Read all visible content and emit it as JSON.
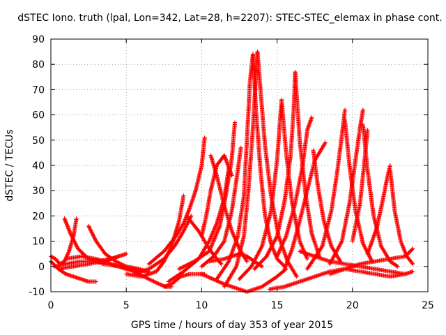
{
  "chart_data": {
    "type": "scatter",
    "title": "dSTEC Iono. truth (lpal, Lon=342, Lat=28, h=2207): STEC-STEC_elemax in phase cont.",
    "xlabel": "GPS time / hours of day 353 of year 2015",
    "ylabel": "dSTEC  / TECUs",
    "xlim": [
      0,
      25
    ],
    "ylim": [
      -10,
      90
    ],
    "xticks": [
      0,
      5,
      10,
      15,
      20,
      25
    ],
    "yticks": [
      -10,
      0,
      10,
      20,
      30,
      40,
      50,
      60,
      70,
      80,
      90
    ],
    "grid": true,
    "marker": "+",
    "colors": {
      "series": "#ff0000"
    },
    "series": [
      {
        "x": [
          0.0,
          0.5,
          1.0,
          1.5,
          2.0,
          2.5,
          3.0
        ],
        "y": [
          2,
          -1,
          -3,
          -4,
          -5,
          -6,
          -6
        ]
      },
      {
        "x": [
          0.0,
          0.3,
          0.6,
          0.9,
          1.2,
          1.5,
          1.7
        ],
        "y": [
          4,
          3,
          1,
          2,
          6,
          12,
          19
        ]
      },
      {
        "x": [
          0.9,
          1.3,
          1.8,
          2.5,
          3.5,
          4.5,
          5.5,
          6.5
        ],
        "y": [
          19,
          13,
          7,
          3,
          1,
          0,
          -1,
          -2
        ]
      },
      {
        "x": [
          2.5,
          3.0,
          3.6,
          4.3,
          5.0,
          5.8,
          6.5
        ],
        "y": [
          16,
          10,
          5,
          2,
          0,
          -1,
          -2
        ]
      },
      {
        "x": [
          0.5,
          1.5,
          2.5,
          3.5,
          4.5,
          5.0
        ],
        "y": [
          -1,
          0,
          1,
          2,
          4,
          5
        ]
      },
      {
        "x": [
          1.0,
          2.0,
          3.0,
          4.0,
          4.5,
          5.0,
          5.8
        ],
        "y": [
          3,
          4,
          3,
          1,
          0,
          -1,
          -2
        ]
      },
      {
        "x": [
          0.2,
          1.0,
          2.0,
          3.0,
          4.0,
          4.5
        ],
        "y": [
          0,
          1,
          2,
          2,
          3,
          4
        ]
      },
      {
        "x": [
          5.0,
          6.0,
          7.0,
          7.5,
          8.0,
          8.5,
          8.8
        ],
        "y": [
          -3,
          -4,
          -2,
          2,
          8,
          18,
          28
        ]
      },
      {
        "x": [
          4.8,
          5.5,
          6.5,
          7.2,
          7.6,
          8.0
        ],
        "y": [
          0,
          -2,
          -5,
          -7,
          -8,
          -8
        ]
      },
      {
        "x": [
          5.5,
          6.5,
          7.5,
          8.2,
          8.8,
          9.3
        ],
        "y": [
          -3,
          -1,
          3,
          8,
          14,
          20
        ]
      },
      {
        "x": [
          6.5,
          7.5,
          8.3,
          8.8,
          9.2,
          9.6,
          10.0,
          10.2
        ],
        "y": [
          1,
          6,
          12,
          17,
          23,
          30,
          40,
          51
        ]
      },
      {
        "x": [
          7.5,
          8.0,
          8.6,
          9.2,
          9.7,
          10.2
        ],
        "y": [
          -8,
          -7,
          -4,
          -3,
          -3,
          -3
        ]
      },
      {
        "x": [
          7.8,
          8.8,
          9.8,
          10.5,
          11.0,
          11.5,
          11.8
        ],
        "y": [
          -6,
          -2,
          3,
          10,
          17,
          27,
          39
        ]
      },
      {
        "x": [
          10.0,
          10.3,
          10.6,
          11.0,
          11.5,
          12.0
        ],
        "y": [
          12,
          20,
          30,
          40,
          44,
          36
        ]
      },
      {
        "x": [
          10.6,
          11.0,
          11.5,
          12.0,
          12.5,
          13.0
        ],
        "y": [
          44,
          36,
          24,
          14,
          7,
          2
        ]
      },
      {
        "x": [
          8.5,
          9.5,
          10.5,
          11.2,
          11.6,
          12.0,
          12.2
        ],
        "y": [
          -1,
          2,
          6,
          16,
          28,
          43,
          57
        ]
      },
      {
        "x": [
          10.0,
          10.8,
          11.5,
          12.0,
          12.3,
          12.6
        ],
        "y": [
          0,
          4,
          10,
          22,
          34,
          47
        ]
      },
      {
        "x": [
          9.0,
          9.8,
          10.5,
          11.0,
          11.3
        ],
        "y": [
          20,
          14,
          7,
          3,
          1
        ]
      },
      {
        "x": [
          10.5,
          11.5,
          12.5,
          13.0,
          13.5,
          14.0
        ],
        "y": [
          2,
          3,
          5,
          4,
          2,
          0
        ]
      },
      {
        "x": [
          10.0,
          11.5,
          13.0,
          14.0,
          15.0,
          15.6
        ],
        "y": [
          -3,
          -7,
          -10,
          -8,
          -4,
          -1
        ]
      },
      {
        "x": [
          11.0,
          11.8,
          12.4,
          12.8,
          13.0,
          13.2,
          13.4
        ],
        "y": [
          -5,
          2,
          12,
          28,
          50,
          73,
          84
        ]
      },
      {
        "x": [
          13.4,
          13.6,
          13.9,
          14.2,
          14.6,
          15.0,
          15.5
        ],
        "y": [
          84,
          62,
          38,
          20,
          9,
          3,
          0
        ]
      },
      {
        "x": [
          11.5,
          12.3,
          12.8,
          13.1,
          13.4,
          13.6,
          13.7
        ],
        "y": [
          -8,
          0,
          12,
          30,
          55,
          75,
          85
        ]
      },
      {
        "x": [
          13.7,
          13.9,
          14.2,
          14.6,
          15.1,
          15.7,
          16.3
        ],
        "y": [
          85,
          70,
          48,
          28,
          12,
          2,
          -4
        ]
      },
      {
        "x": [
          12.5,
          13.3,
          14.0,
          14.6,
          15.0,
          15.2,
          15.3
        ],
        "y": [
          -5,
          0,
          8,
          22,
          42,
          58,
          66
        ]
      },
      {
        "x": [
          15.3,
          15.6,
          16.0,
          16.5,
          17.0
        ],
        "y": [
          66,
          45,
          25,
          10,
          3
        ]
      },
      {
        "x": [
          13.5,
          14.3,
          15.0,
          15.5,
          15.9,
          16.1,
          16.2
        ],
        "y": [
          -1,
          4,
          12,
          26,
          44,
          62,
          77
        ]
      },
      {
        "x": [
          16.2,
          16.5,
          16.9,
          17.3,
          17.8
        ],
        "y": [
          77,
          50,
          28,
          13,
          4
        ]
      },
      {
        "x": [
          15.0,
          15.6,
          16.2,
          16.7,
          17.0,
          17.3
        ],
        "y": [
          4,
          12,
          25,
          40,
          54,
          59
        ]
      },
      {
        "x": [
          15.5,
          16.0,
          16.5,
          17.0,
          17.5,
          18.2
        ],
        "y": [
          -1,
          7,
          18,
          30,
          42,
          49
        ]
      },
      {
        "x": [
          17.4,
          17.7,
          18.1,
          18.6,
          19.2
        ],
        "y": [
          46,
          32,
          18,
          8,
          2
        ]
      },
      {
        "x": [
          17.0,
          18.0,
          18.6,
          19.0,
          19.3,
          19.5
        ],
        "y": [
          -1,
          8,
          22,
          38,
          52,
          62
        ]
      },
      {
        "x": [
          19.5,
          19.8,
          20.2,
          20.7,
          21.3
        ],
        "y": [
          58,
          40,
          22,
          9,
          2
        ]
      },
      {
        "x": [
          18.5,
          19.3,
          19.8,
          20.2,
          20.5,
          20.7
        ],
        "y": [
          1,
          10,
          25,
          42,
          55,
          62
        ]
      },
      {
        "x": [
          20.7,
          21.0,
          21.4,
          21.9,
          22.5,
          23.0
        ],
        "y": [
          56,
          38,
          20,
          8,
          2,
          0
        ]
      },
      {
        "x": [
          20.0,
          20.5,
          20.8,
          21.0
        ],
        "y": [
          10,
          25,
          42,
          54
        ]
      },
      {
        "x": [
          21.0,
          21.6,
          22.0,
          22.3,
          22.5
        ],
        "y": [
          5,
          15,
          26,
          35,
          40
        ]
      },
      {
        "x": [
          22.5,
          22.8,
          23.2,
          23.6,
          24.0
        ],
        "y": [
          38,
          22,
          10,
          4,
          1
        ]
      },
      {
        "x": [
          14.5,
          15.5,
          16.5,
          17.5,
          18.5,
          19.5,
          20.5,
          21.5,
          22.5,
          23.5,
          24.0
        ],
        "y": [
          -9,
          -8,
          -6,
          -4,
          -2,
          -1,
          -2,
          -3,
          -4,
          -3,
          -2
        ]
      },
      {
        "x": [
          16.5,
          17.5,
          18.5,
          19.5,
          20.5,
          21.5,
          22.5,
          23.5
        ],
        "y": [
          6,
          4,
          2,
          1,
          0,
          -1,
          -2,
          -3
        ]
      },
      {
        "x": [
          18.5,
          19.5,
          20.5,
          21.5,
          22.5,
          23.5,
          24.0
        ],
        "y": [
          -3,
          -1,
          1,
          2,
          3,
          4,
          7
        ]
      }
    ]
  }
}
